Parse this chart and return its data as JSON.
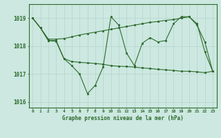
{
  "title": "Graphe pression niveau de la mer (hPa)",
  "x_labels": [
    "0",
    "1",
    "2",
    "3",
    "4",
    "5",
    "6",
    "7",
    "8",
    "9",
    "10",
    "11",
    "12",
    "13",
    "14",
    "15",
    "16",
    "17",
    "18",
    "19",
    "20",
    "21",
    "22",
    "23"
  ],
  "hours": [
    0,
    1,
    2,
    3,
    4,
    5,
    6,
    7,
    8,
    9,
    10,
    11,
    12,
    13,
    14,
    15,
    16,
    17,
    18,
    19,
    20,
    21,
    22,
    23
  ],
  "line_zigzag": [
    1019.0,
    1018.65,
    1018.2,
    1018.2,
    1017.55,
    1017.3,
    1017.0,
    1016.3,
    1016.6,
    1017.25,
    1019.05,
    1018.75,
    1017.75,
    1017.3,
    1018.1,
    1018.3,
    1018.15,
    1018.2,
    1018.8,
    1019.05,
    1019.05,
    1018.8,
    1017.8,
    1017.1
  ],
  "line_upper": [
    1019.0,
    1018.65,
    1018.25,
    1018.25,
    1018.27,
    1018.33,
    1018.4,
    1018.45,
    1018.5,
    1018.55,
    1018.6,
    1018.65,
    1018.7,
    1018.75,
    1018.8,
    1018.85,
    1018.88,
    1018.92,
    1018.95,
    1019.0,
    1019.05,
    1018.75,
    1018.15,
    1017.1
  ],
  "line_lower": [
    1019.0,
    1018.65,
    1018.2,
    1018.17,
    1017.55,
    1017.45,
    1017.42,
    1017.4,
    1017.38,
    1017.35,
    1017.3,
    1017.28,
    1017.27,
    1017.25,
    1017.22,
    1017.2,
    1017.17,
    1017.15,
    1017.13,
    1017.1,
    1017.1,
    1017.08,
    1017.05,
    1017.1
  ],
  "ylim": [
    1015.8,
    1019.5
  ],
  "yticks": [
    1016,
    1017,
    1018,
    1019
  ],
  "line_color": "#2d6a2d",
  "bg_color": "#cce8e0",
  "grid_color": "#b8d8d0",
  "label_color": "#2d6a2d",
  "title_color": "#2d6a2d"
}
